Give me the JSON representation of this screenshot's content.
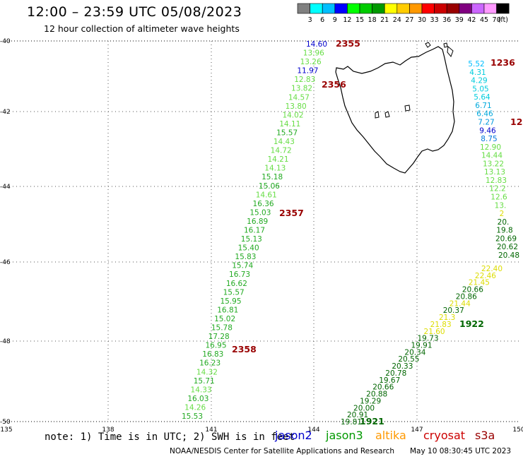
{
  "header": {
    "title": "12:00 – 23:59 UTC 05/08/2023",
    "subtitle": "12 hour collection of altimeter wave heights"
  },
  "colorbar": {
    "colors": [
      "#808080",
      "#00ffff",
      "#00bfff",
      "#0000ff",
      "#00ff00",
      "#00cc00",
      "#009900",
      "#ffff00",
      "#ffcc00",
      "#ff9900",
      "#ff0000",
      "#cc0000",
      "#990000",
      "#800080",
      "#cc66ff",
      "#ff99ff",
      "#000000"
    ],
    "labels": [
      "3",
      "6",
      "9",
      "12",
      "15",
      "18",
      "21",
      "24",
      "27",
      "30",
      "33",
      "36",
      "39",
      "42",
      "45",
      "70"
    ],
    "unit": "(ft)"
  },
  "axes": {
    "lat_labels": [
      "-40",
      "-42",
      "-44",
      "-46",
      "-48",
      "-50"
    ],
    "lon_labels": [
      "135",
      "138",
      "141",
      "144",
      "147",
      "150"
    ]
  },
  "tracks": [
    {
      "name": "track-a",
      "time": "2355"
    },
    {
      "name": "track-b",
      "time": "2356"
    },
    {
      "name": "track-c",
      "time": "2357"
    },
    {
      "name": "track-d",
      "time": "2358"
    },
    {
      "name": "track-e",
      "time": "1236"
    },
    {
      "name": "track-f",
      "time": "1922"
    },
    {
      "name": "track-g",
      "time": "1921"
    }
  ],
  "wave_heights": {
    "west": [
      {
        "v": "14.60",
        "c": "#0000cc"
      },
      {
        "v": "13.96",
        "c": "#66dd44"
      },
      {
        "v": "13.26",
        "c": "#66dd44"
      },
      {
        "v": "11.97",
        "c": "#0000cc"
      },
      {
        "v": "12.83",
        "c": "#66dd44"
      },
      {
        "v": "13.82",
        "c": "#66dd44"
      },
      {
        "v": "14.57",
        "c": "#66dd44"
      },
      {
        "v": "13.80",
        "c": "#66dd44"
      },
      {
        "v": "14.02",
        "c": "#66dd44"
      },
      {
        "v": "14.11",
        "c": "#66dd44"
      },
      {
        "v": "15.57",
        "c": "#22aa22"
      },
      {
        "v": "14.43",
        "c": "#66dd44"
      },
      {
        "v": "14.72",
        "c": "#66dd44"
      },
      {
        "v": "14.21",
        "c": "#66dd44"
      },
      {
        "v": "14.13",
        "c": "#66dd44"
      },
      {
        "v": "15.18",
        "c": "#22aa22"
      },
      {
        "v": "15.06",
        "c": "#22aa22"
      },
      {
        "v": "14.61",
        "c": "#66dd44"
      },
      {
        "v": "16.36",
        "c": "#22aa22"
      },
      {
        "v": "15.03",
        "c": "#22aa22"
      },
      {
        "v": "16.89",
        "c": "#22aa22"
      },
      {
        "v": "16.17",
        "c": "#22aa22"
      },
      {
        "v": "15.13",
        "c": "#22aa22"
      },
      {
        "v": "15.40",
        "c": "#22aa22"
      },
      {
        "v": "15.83",
        "c": "#22aa22"
      },
      {
        "v": "15.74",
        "c": "#22aa22"
      },
      {
        "v": "16.73",
        "c": "#22aa22"
      },
      {
        "v": "16.62",
        "c": "#22aa22"
      },
      {
        "v": "15.57",
        "c": "#22aa22"
      },
      {
        "v": "15.95",
        "c": "#22aa22"
      },
      {
        "v": "16.81",
        "c": "#22aa22"
      },
      {
        "v": "15.02",
        "c": "#22aa22"
      },
      {
        "v": "15.78",
        "c": "#22aa22"
      },
      {
        "v": "17.28",
        "c": "#22aa22"
      },
      {
        "v": "16.95",
        "c": "#22aa22"
      },
      {
        "v": "16.83",
        "c": "#22aa22"
      },
      {
        "v": "16.23",
        "c": "#22aa22"
      },
      {
        "v": "14.32",
        "c": "#66dd44"
      },
      {
        "v": "15.71",
        "c": "#22aa22"
      },
      {
        "v": "14.33",
        "c": "#66dd44"
      },
      {
        "v": "16.03",
        "c": "#22aa22"
      },
      {
        "v": "14.26",
        "c": "#66dd44"
      },
      {
        "v": "15.53",
        "c": "#22aa22"
      }
    ],
    "east_top": [
      {
        "v": "5.52",
        "c": "#00bfff"
      },
      {
        "v": "4.31",
        "c": "#00ccdd"
      },
      {
        "v": "4.29",
        "c": "#00ccdd"
      },
      {
        "v": "5.05",
        "c": "#00ccdd"
      },
      {
        "v": "5.64",
        "c": "#00ccdd"
      },
      {
        "v": "6.71",
        "c": "#00aadd"
      },
      {
        "v": "6.46",
        "c": "#00aadd"
      },
      {
        "v": "7.27",
        "c": "#0099dd"
      },
      {
        "v": "9.46",
        "c": "#0000cc"
      },
      {
        "v": "8.75",
        "c": "#0077dd"
      },
      {
        "v": "12.90",
        "c": "#66dd44"
      },
      {
        "v": "14.44",
        "c": "#66dd44"
      },
      {
        "v": "13.22",
        "c": "#66dd44"
      },
      {
        "v": "13.13",
        "c": "#66dd44"
      },
      {
        "v": "12.83",
        "c": "#66dd44"
      },
      {
        "v": "12.2",
        "c": "#66dd44"
      },
      {
        "v": "12.6",
        "c": "#66dd44"
      },
      {
        "v": "13.",
        "c": "#66dd44"
      },
      {
        "v": "2",
        "c": "#dddd00"
      },
      {
        "v": "20.",
        "c": "#006600"
      },
      {
        "v": "19.8",
        "c": "#006600"
      },
      {
        "v": "20.69",
        "c": "#006600"
      },
      {
        "v": "20.62",
        "c": "#006600"
      },
      {
        "v": "20.48",
        "c": "#006600"
      }
    ],
    "east_bottom": [
      {
        "v": "22.40",
        "c": "#dddd00"
      },
      {
        "v": "22.46",
        "c": "#dddd00"
      },
      {
        "v": "21.45",
        "c": "#dddd00"
      },
      {
        "v": "20.66",
        "c": "#006600"
      },
      {
        "v": "20.86",
        "c": "#006600"
      },
      {
        "v": "21.44",
        "c": "#dddd00"
      },
      {
        "v": "20.37",
        "c": "#006600"
      },
      {
        "v": "21.3",
        "c": "#dddd00"
      },
      {
        "v": "21.83",
        "c": "#dddd00"
      },
      {
        "v": "21.60",
        "c": "#dddd00"
      },
      {
        "v": "19.73",
        "c": "#006600"
      },
      {
        "v": "19.91",
        "c": "#006600"
      },
      {
        "v": "20.34",
        "c": "#006600"
      },
      {
        "v": "20.55",
        "c": "#006600"
      },
      {
        "v": "20.33",
        "c": "#006600"
      },
      {
        "v": "20.78",
        "c": "#006600"
      },
      {
        "v": "19.67",
        "c": "#006600"
      },
      {
        "v": "20.66",
        "c": "#006600"
      },
      {
        "v": "20.88",
        "c": "#006600"
      },
      {
        "v": "19.29",
        "c": "#006600"
      },
      {
        "v": "20.00",
        "c": "#006600"
      },
      {
        "v": "20.91",
        "c": "#006600"
      },
      {
        "v": "19.81",
        "c": "#006600"
      }
    ]
  },
  "extra_label": {
    "v": "12",
    "c": "#990000"
  },
  "footer": {
    "note": "note:  1) Time is in UTC; 2) SWH is in feet",
    "satellites": [
      {
        "name": "jason2",
        "color": "#0000cc"
      },
      {
        "name": "jason3",
        "color": "#009900"
      },
      {
        "name": "altika",
        "color": "#ff9900"
      },
      {
        "name": "cryosat",
        "color": "#cc0000"
      },
      {
        "name": "s3a",
        "color": "#990000"
      }
    ],
    "credit": "NOAA/NESDIS Center for Satellite Applications and Research",
    "timestamp": "May 10 08:30:45 UTC 2023"
  }
}
